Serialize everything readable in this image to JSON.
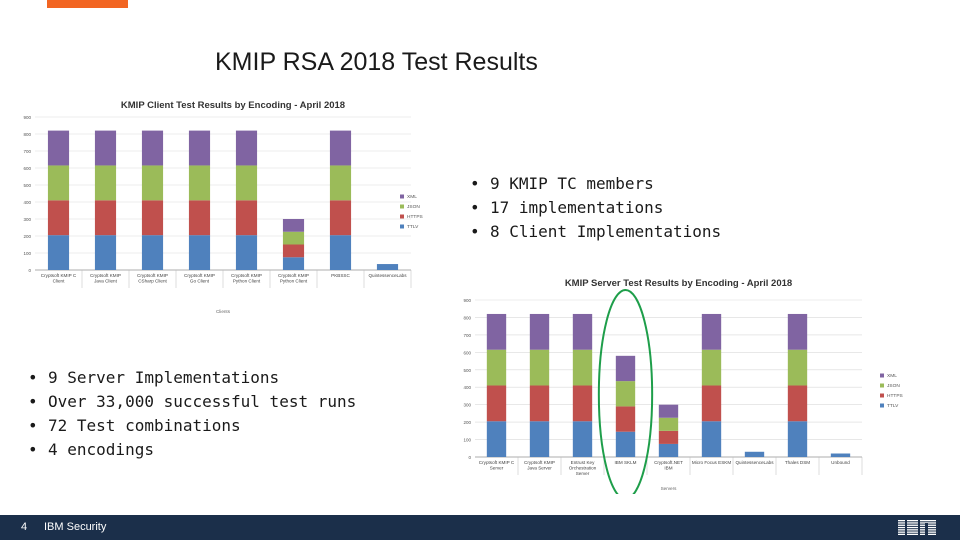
{
  "slide": {
    "title": "KMIP RSA 2018 Test Results",
    "page_number": "4",
    "footer_label": "IBM Security",
    "accent_color": "#f26522",
    "footer_color": "#1b2f4a",
    "logo_icon": "ibm-logo-icon"
  },
  "bullets_top": [
    "9 KMIP TC members",
    "17 implementations",
    "8 Client Implementations"
  ],
  "bullets_bottom": [
    "9 Server Implementations",
    "Over 33,000 successful test runs",
    "72 Test combinations",
    "4 encodings"
  ],
  "chart_data": [
    {
      "type": "bar",
      "stacked": true,
      "title": "KMIP Client Test Results by Encoding - April 2018",
      "xlabel": "Clients",
      "ylabel": "",
      "ylim": [
        0,
        900
      ],
      "yticks": [
        0,
        100,
        200,
        300,
        400,
        500,
        600,
        700,
        800,
        900
      ],
      "categories": [
        "Cryptsoft KMIP C Client",
        "Cryptsoft KMIP Java Client",
        "Cryptsoft KMIP CSharp Client",
        "Cryptsoft KMIP Go Client",
        "Cryptsoft KMIP Python Client",
        "Cryptsoft KMIP Python Client",
        "PKBSSC",
        "QuintessenceLabs"
      ],
      "series": [
        {
          "name": "TTLV",
          "color": "#4f81bd",
          "values": [
            205,
            205,
            205,
            205,
            205,
            75,
            205,
            35
          ]
        },
        {
          "name": "HTTPS",
          "color": "#c0504d",
          "values": [
            205,
            205,
            205,
            205,
            205,
            75,
            205,
            0
          ]
        },
        {
          "name": "JSON",
          "color": "#9bbb59",
          "values": [
            205,
            205,
            205,
            205,
            205,
            75,
            205,
            0
          ]
        },
        {
          "name": "XML",
          "color": "#8064a2",
          "values": [
            205,
            205,
            205,
            205,
            205,
            75,
            205,
            0
          ]
        }
      ],
      "legend": "right"
    },
    {
      "type": "bar",
      "stacked": true,
      "title": "KMIP Server Test Results by Encoding - April 2018",
      "xlabel": "Servers",
      "ylabel": "",
      "ylim": [
        0,
        900
      ],
      "yticks": [
        0,
        100,
        200,
        300,
        400,
        500,
        600,
        700,
        800,
        900
      ],
      "categories": [
        "Cryptsoft KMIP C Server",
        "Cryptsoft KMIP Java Server",
        "Entrust Key Orchestration Server",
        "IBM SKLM",
        "Cryptsoft.NET IBM",
        "Micro Focus ESKM",
        "QuintessenceLabs",
        "Thales DSM",
        "Unbound"
      ],
      "series": [
        {
          "name": "TTLV",
          "color": "#4f81bd",
          "values": [
            205,
            205,
            205,
            145,
            75,
            205,
            30,
            205,
            20
          ]
        },
        {
          "name": "HTTPS",
          "color": "#c0504d",
          "values": [
            205,
            205,
            205,
            145,
            75,
            205,
            0,
            205,
            0
          ]
        },
        {
          "name": "JSON",
          "color": "#9bbb59",
          "values": [
            205,
            205,
            205,
            145,
            75,
            205,
            0,
            205,
            0
          ]
        },
        {
          "name": "XML",
          "color": "#8064a2",
          "values": [
            205,
            205,
            205,
            145,
            75,
            205,
            0,
            205,
            0
          ]
        }
      ],
      "highlight_category": "IBM SKLM",
      "highlight_color": "#1e9e4a",
      "legend": "right"
    }
  ]
}
